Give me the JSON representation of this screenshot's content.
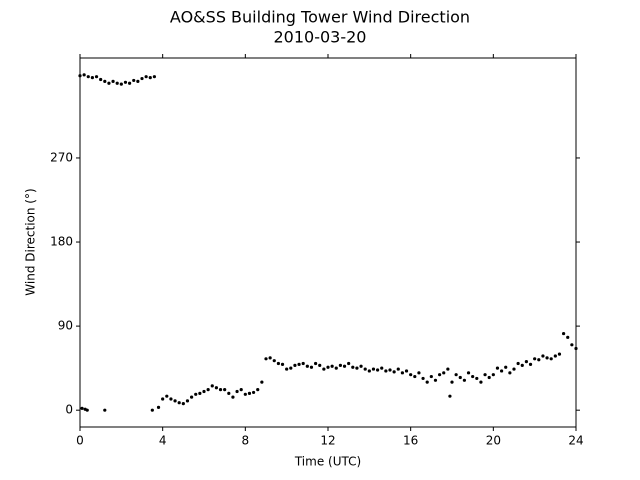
{
  "chart_data": {
    "type": "scatter",
    "title": "AO&SS Building Tower Wind Direction",
    "subtitle": "2010-03-20",
    "x_label": "Time (UTC)",
    "y_label": "Wind Direction (°)",
    "color": "#000000",
    "xlim": [
      0,
      24
    ],
    "xticks": [
      0,
      4,
      8,
      12,
      16,
      20,
      24
    ],
    "ylim": [
      -18,
      377
    ],
    "yticks": [
      0,
      90,
      180,
      270
    ],
    "x": [
      0.0,
      0.1,
      0.2,
      0.25,
      0.35,
      0.4,
      0.6,
      0.8,
      1.0,
      1.2,
      1.2,
      1.4,
      1.6,
      1.8,
      2.0,
      2.2,
      2.4,
      2.6,
      2.8,
      3.0,
      3.2,
      3.4,
      3.5,
      3.6,
      3.8,
      4.0,
      4.2,
      4.4,
      4.6,
      4.8,
      5.0,
      5.2,
      5.4,
      5.6,
      5.8,
      6.0,
      6.2,
      6.4,
      6.6,
      6.8,
      7.0,
      7.2,
      7.4,
      7.6,
      7.8,
      8.0,
      8.2,
      8.4,
      8.6,
      8.8,
      9.0,
      9.2,
      9.4,
      9.6,
      9.8,
      10.0,
      10.2,
      10.4,
      10.6,
      10.8,
      11.0,
      11.2,
      11.4,
      11.6,
      11.8,
      12.0,
      12.2,
      12.4,
      12.6,
      12.8,
      13.0,
      13.2,
      13.4,
      13.6,
      13.8,
      14.0,
      14.2,
      14.4,
      14.6,
      14.8,
      15.0,
      15.2,
      15.4,
      15.6,
      15.8,
      16.0,
      16.2,
      16.4,
      16.6,
      16.8,
      17.0,
      17.2,
      17.4,
      17.6,
      17.8,
      17.9,
      18.0,
      18.2,
      18.4,
      18.6,
      18.8,
      19.0,
      19.2,
      19.4,
      19.6,
      19.8,
      20.0,
      20.2,
      20.4,
      20.6,
      20.8,
      21.0,
      21.2,
      21.4,
      21.6,
      21.8,
      22.0,
      22.2,
      22.4,
      22.6,
      22.8,
      23.0,
      23.2,
      23.4,
      23.6,
      23.8,
      24.0
    ],
    "values": [
      358,
      2,
      359,
      1,
      0,
      357,
      356,
      357,
      354,
      352,
      0,
      350,
      352,
      350,
      349,
      351,
      350,
      353,
      352,
      355,
      357,
      356,
      0,
      357,
      3,
      12,
      15,
      12,
      10,
      8,
      7,
      10,
      14,
      17,
      18,
      20,
      22,
      26,
      24,
      22,
      22,
      18,
      14,
      20,
      22,
      17,
      18,
      19,
      22,
      30,
      55,
      56,
      53,
      50,
      49,
      44,
      45,
      48,
      49,
      50,
      47,
      46,
      50,
      48,
      44,
      46,
      47,
      45,
      48,
      47,
      50,
      46,
      45,
      47,
      44,
      42,
      44,
      43,
      45,
      42,
      43,
      41,
      44,
      40,
      42,
      38,
      36,
      40,
      34,
      30,
      36,
      32,
      38,
      40,
      44,
      15,
      30,
      38,
      35,
      32,
      40,
      36,
      34,
      30,
      38,
      35,
      38,
      45,
      42,
      46,
      40,
      44,
      50,
      48,
      52,
      49,
      55,
      54,
      58,
      56,
      55,
      58,
      60,
      82,
      78,
      70,
      66
    ]
  }
}
